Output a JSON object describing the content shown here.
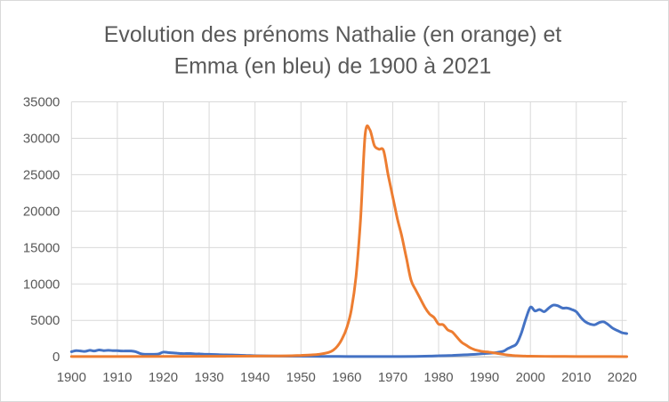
{
  "chart_data": {
    "type": "line",
    "title_lines": [
      "Evolution des prénoms Nathalie (en orange) et",
      "Emma (en bleu) de 1900 à 2021"
    ],
    "xlabel": "",
    "ylabel": "",
    "xlim": [
      1900,
      2021
    ],
    "ylim": [
      0,
      35000
    ],
    "x_ticks": [
      1900,
      1910,
      1920,
      1930,
      1940,
      1950,
      1960,
      1970,
      1980,
      1990,
      2000,
      2010,
      2020
    ],
    "y_ticks": [
      0,
      5000,
      10000,
      15000,
      20000,
      25000,
      30000,
      35000
    ],
    "grid": "vertical and horizontal",
    "legend": "none",
    "series": [
      {
        "color": "#4472c4",
        "points": [
          [
            1900,
            700
          ],
          [
            1901,
            850
          ],
          [
            1902,
            800
          ],
          [
            1903,
            750
          ],
          [
            1904,
            900
          ],
          [
            1905,
            800
          ],
          [
            1906,
            950
          ],
          [
            1907,
            850
          ],
          [
            1908,
            900
          ],
          [
            1909,
            850
          ],
          [
            1910,
            850
          ],
          [
            1911,
            800
          ],
          [
            1912,
            800
          ],
          [
            1913,
            800
          ],
          [
            1914,
            700
          ],
          [
            1915,
            450
          ],
          [
            1916,
            350
          ],
          [
            1917,
            350
          ],
          [
            1918,
            350
          ],
          [
            1919,
            400
          ],
          [
            1920,
            650
          ],
          [
            1921,
            600
          ],
          [
            1922,
            550
          ],
          [
            1923,
            500
          ],
          [
            1924,
            450
          ],
          [
            1925,
            450
          ],
          [
            1926,
            450
          ],
          [
            1927,
            400
          ],
          [
            1928,
            400
          ],
          [
            1929,
            350
          ],
          [
            1930,
            350
          ],
          [
            1932,
            300
          ],
          [
            1935,
            250
          ],
          [
            1938,
            200
          ],
          [
            1940,
            150
          ],
          [
            1945,
            100
          ],
          [
            1950,
            80
          ],
          [
            1955,
            60
          ],
          [
            1960,
            50
          ],
          [
            1965,
            40
          ],
          [
            1970,
            40
          ],
          [
            1975,
            60
          ],
          [
            1978,
            100
          ],
          [
            1980,
            150
          ],
          [
            1983,
            200
          ],
          [
            1985,
            250
          ],
          [
            1988,
            350
          ],
          [
            1990,
            450
          ],
          [
            1992,
            550
          ],
          [
            1994,
            750
          ],
          [
            1995,
            1100
          ],
          [
            1996,
            1400
          ],
          [
            1997,
            1800
          ],
          [
            1998,
            3200
          ],
          [
            1999,
            5200
          ],
          [
            2000,
            6800
          ],
          [
            2001,
            6300
          ],
          [
            2002,
            6500
          ],
          [
            2003,
            6200
          ],
          [
            2004,
            6700
          ],
          [
            2005,
            7100
          ],
          [
            2006,
            7000
          ],
          [
            2007,
            6700
          ],
          [
            2008,
            6700
          ],
          [
            2009,
            6500
          ],
          [
            2010,
            6200
          ],
          [
            2011,
            5400
          ],
          [
            2012,
            4800
          ],
          [
            2013,
            4500
          ],
          [
            2014,
            4400
          ],
          [
            2015,
            4700
          ],
          [
            2016,
            4800
          ],
          [
            2017,
            4400
          ],
          [
            2018,
            3900
          ],
          [
            2019,
            3600
          ],
          [
            2020,
            3300
          ],
          [
            2021,
            3200
          ]
        ]
      },
      {
        "color": "#ed7d31",
        "points": [
          [
            1900,
            50
          ],
          [
            1910,
            50
          ],
          [
            1920,
            60
          ],
          [
            1930,
            70
          ],
          [
            1940,
            100
          ],
          [
            1945,
            120
          ],
          [
            1948,
            150
          ],
          [
            1950,
            200
          ],
          [
            1952,
            250
          ],
          [
            1954,
            350
          ],
          [
            1956,
            600
          ],
          [
            1957,
            900
          ],
          [
            1958,
            1500
          ],
          [
            1959,
            2500
          ],
          [
            1960,
            4000
          ],
          [
            1961,
            6500
          ],
          [
            1962,
            11000
          ],
          [
            1963,
            19000
          ],
          [
            1964,
            30500
          ],
          [
            1965,
            31200
          ],
          [
            1966,
            29000
          ],
          [
            1967,
            28500
          ],
          [
            1968,
            28300
          ],
          [
            1969,
            25000
          ],
          [
            1970,
            22000
          ],
          [
            1971,
            19000
          ],
          [
            1972,
            16500
          ],
          [
            1973,
            13500
          ],
          [
            1974,
            10500
          ],
          [
            1975,
            9200
          ],
          [
            1976,
            8000
          ],
          [
            1977,
            6800
          ],
          [
            1978,
            5900
          ],
          [
            1979,
            5400
          ],
          [
            1980,
            4500
          ],
          [
            1981,
            4400
          ],
          [
            1982,
            3700
          ],
          [
            1983,
            3400
          ],
          [
            1984,
            2700
          ],
          [
            1985,
            2000
          ],
          [
            1986,
            1600
          ],
          [
            1987,
            1200
          ],
          [
            1988,
            950
          ],
          [
            1989,
            800
          ],
          [
            1990,
            700
          ],
          [
            1991,
            650
          ],
          [
            1992,
            550
          ],
          [
            1993,
            450
          ],
          [
            1994,
            350
          ],
          [
            1995,
            250
          ],
          [
            1996,
            200
          ],
          [
            1997,
            150
          ],
          [
            1998,
            120
          ],
          [
            1999,
            100
          ],
          [
            2000,
            80
          ],
          [
            2005,
            60
          ],
          [
            2010,
            50
          ],
          [
            2015,
            40
          ],
          [
            2021,
            30
          ]
        ]
      }
    ]
  }
}
